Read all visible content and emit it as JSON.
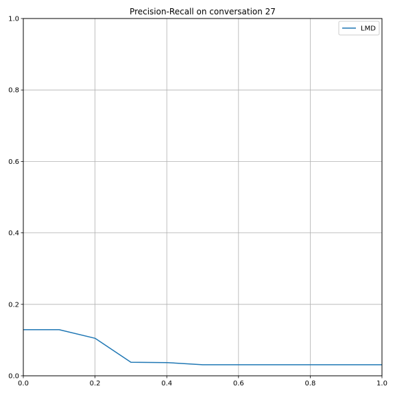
{
  "chart_data": {
    "type": "line",
    "title": "Precision-Recall on conversation 27",
    "xlabel": "",
    "ylabel": "",
    "xlim": [
      0,
      1
    ],
    "ylim": [
      0,
      1
    ],
    "x_ticks": [
      0,
      0.2,
      0.4,
      0.6,
      0.8,
      1
    ],
    "x_tick_labels": [
      "0.0",
      "0.2",
      "0.4",
      "0.6",
      "0.8",
      "1.0"
    ],
    "y_ticks": [
      0,
      0.2,
      0.4,
      0.6,
      0.8,
      1
    ],
    "y_tick_labels": [
      "0.0",
      "0.2",
      "0.4",
      "0.6",
      "0.8",
      "1.0"
    ],
    "grid_x": [
      0.2,
      0.4,
      0.6,
      0.8
    ],
    "grid_y": [
      0.2,
      0.4,
      0.6,
      0.8
    ],
    "grid": true,
    "legend_position": "top-right",
    "series": [
      {
        "name": "LMD",
        "color": "#1f77b4",
        "x": [
          0.0,
          0.1,
          0.2,
          0.3,
          0.4,
          0.5,
          0.6,
          0.7,
          0.8,
          0.9,
          1.0
        ],
        "y": [
          0.129,
          0.129,
          0.105,
          0.038,
          0.037,
          0.031,
          0.031,
          0.031,
          0.031,
          0.031,
          0.031
        ]
      }
    ]
  }
}
